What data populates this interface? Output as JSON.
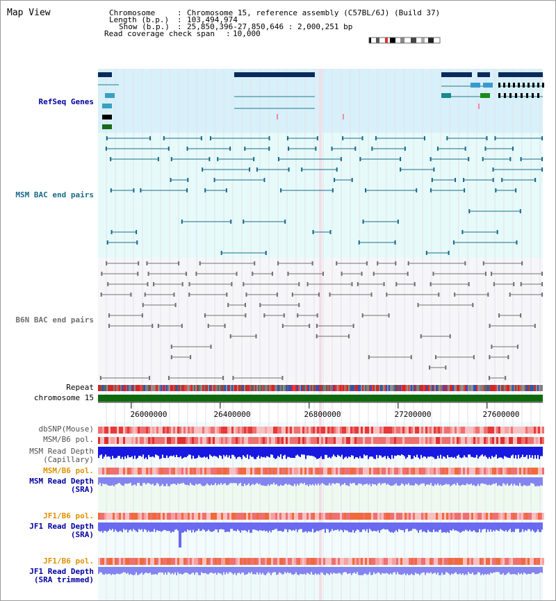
{
  "panel_title": "Map View",
  "header": {
    "chromosome_label": "Chromosome",
    "chromosome_value": "Chromosome 15, reference assembly (C57BL/6J) (Build 37)",
    "length_label": "Length (b.p.)",
    "length_value": "103,494,974",
    "show_label": "Show (b.p.)",
    "show_value": "25,850,396-27,850,646 : 2,000,251 bp",
    "coverage_label": "Read coverage check span",
    "coverage_value": "10,000"
  },
  "tracks": {
    "refseq": "RefSeq Genes",
    "msm_bac": "MSM BAC end pairs",
    "b6n_bac": "B6N BAC end pairs",
    "repeat": "Repeat",
    "chromosome": "chromosome 15",
    "dbsnp": "dbSNP(Mouse)",
    "msm_pol_1": "MSM/B6 pol.",
    "msm_cap_1": "MSM Read Depth",
    "msm_cap_2": "(Capillary)",
    "msm_pol_2": "MSM/B6 pol.",
    "msm_sra_1": "MSM Read Depth",
    "msm_sra_2": "(SRA)",
    "jf1_pol_1": "JF1/B6 pol.",
    "jf1_sra_1": "JF1 Read Depth",
    "jf1_sra_2": "(SRA)",
    "jf1_pol_2": "JF1/B6 pol.",
    "jf1_trim_1": "JF1 Read Depth",
    "jf1_trim_2": "(SRA trimmed)"
  },
  "axis": {
    "ticks": [
      "26000000",
      "26400000",
      "26800000",
      "27200000",
      "27600000"
    ],
    "tick_bp": [
      26000000,
      26400000,
      26800000,
      27200000,
      27600000
    ],
    "view_start_bp": 25850396,
    "view_end_bp": 27850646
  },
  "colors": {
    "gene_dark": "#0a2a5c",
    "gene_mid": "#1a7a8a",
    "gene_green": "#1a6a1a",
    "msm_bac": "#1a6a88",
    "b6n_bac": "#707070",
    "chromosome_bar": "#0f6a0f",
    "refseq_bg": "#d8f0fa",
    "msm_bg": "#e6fafa",
    "snp_red": "#e83838",
    "depth_blue": "#1818e0",
    "depth_light": "#8484f0",
    "label_blue": "#0000a0",
    "label_orange": "#e09000"
  }
}
